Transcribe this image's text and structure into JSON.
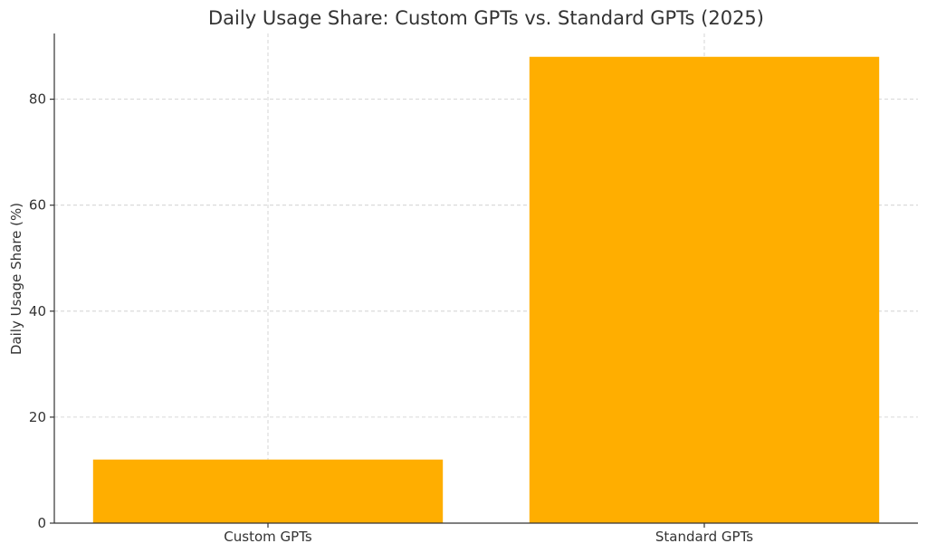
{
  "colors": {
    "bar": "#FFAE00",
    "grid": "#cccccc",
    "axis": "#333333",
    "text": "#333333"
  },
  "chart_data": {
    "type": "bar",
    "title": "Daily Usage Share: Custom GPTs vs. Standard GPTs (2025)",
    "xlabel": "",
    "ylabel": "Daily Usage Share (%)",
    "categories": [
      "Custom GPTs",
      "Standard GPTs"
    ],
    "values": [
      12,
      88
    ],
    "ylim": [
      0,
      92.4
    ],
    "yticks": [
      0,
      20,
      40,
      60,
      80
    ],
    "grid": true,
    "legend": "none"
  }
}
